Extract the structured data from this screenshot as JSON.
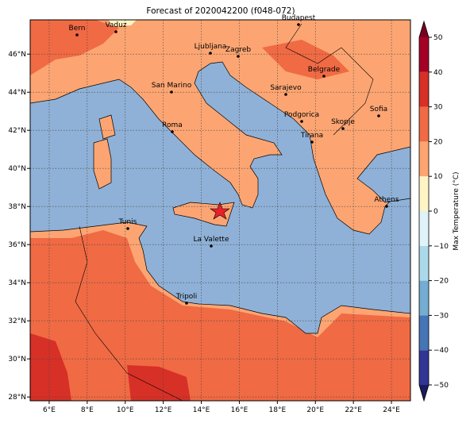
{
  "title": "Forecast of 2020042200 (f048-072)",
  "map": {
    "xlim": [
      5,
      25
    ],
    "ylim": [
      27.8,
      47.8
    ],
    "xticks": [
      {
        "value": 6,
        "label": "6°E"
      },
      {
        "value": 8,
        "label": "8°E"
      },
      {
        "value": 10,
        "label": "10°E"
      },
      {
        "value": 12,
        "label": "12°E"
      },
      {
        "value": 14,
        "label": "14°E"
      },
      {
        "value": 16,
        "label": "16°E"
      },
      {
        "value": 18,
        "label": "18°E"
      },
      {
        "value": 20,
        "label": "20°E"
      },
      {
        "value": 22,
        "label": "22°E"
      },
      {
        "value": 24,
        "label": "24°E"
      }
    ],
    "yticks": [
      {
        "value": 28,
        "label": "28°N"
      },
      {
        "value": 30,
        "label": "30°N"
      },
      {
        "value": 32,
        "label": "32°N"
      },
      {
        "value": 34,
        "label": "34°N"
      },
      {
        "value": 36,
        "label": "36°N"
      },
      {
        "value": 38,
        "label": "38°N"
      },
      {
        "value": 40,
        "label": "40°N"
      },
      {
        "value": 42,
        "label": "42°N"
      },
      {
        "value": 44,
        "label": "44°N"
      },
      {
        "value": 46,
        "label": "46°N"
      }
    ],
    "grid": true,
    "cities": [
      "Bern",
      "Vaduz",
      "Budapest",
      "Ljubljana",
      "Zagreb",
      "Belgrade",
      "San Marino",
      "Sarajevo",
      "Sofia",
      "Roma",
      "Podgorica",
      "Skopje",
      "Tirana",
      "Athens",
      "Tunis",
      "La Valette",
      "Tripoli"
    ]
  },
  "colorbar": {
    "label": "Max Temperature (°C)",
    "lim": [
      -50,
      50
    ],
    "ticks": [
      {
        "value": -50,
        "label": "−50"
      },
      {
        "value": -40,
        "label": "−40"
      },
      {
        "value": -30,
        "label": "−30"
      },
      {
        "value": -20,
        "label": "−20"
      },
      {
        "value": -10,
        "label": "−10"
      },
      0,
      10,
      20,
      30,
      40,
      50
    ],
    "colors": [
      "#313695",
      "#4575b4",
      "#74add1",
      "#abd9e9",
      "#e0f3f8",
      "#fff5c4",
      "#fca572",
      "#f06a44",
      "#d73027",
      "#a50026"
    ],
    "under_color": "#1b1b5e",
    "over_color": "#7a0020"
  }
}
